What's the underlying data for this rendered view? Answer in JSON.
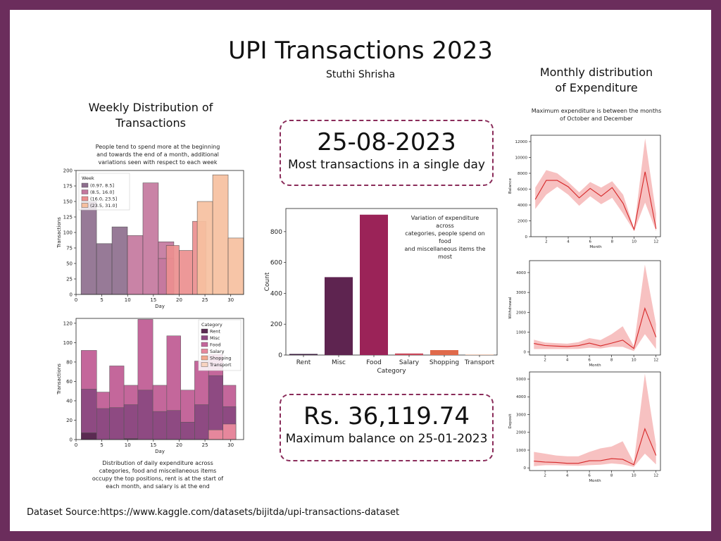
{
  "title": "UPI Transactions 2023",
  "author": "Stuthi Shrisha",
  "weekly": {
    "heading_line1": "Weekly Distribution of",
    "heading_line2": "Transactions",
    "note_lines": [
      "People tend to spend more at the beginning",
      "and towards the end of a month, additional",
      "variations seen with respect to each week"
    ],
    "bottom_note_lines": [
      "Distribution of daily expenditure across",
      "categories, food and miscellaneous items",
      "occupy the top positions, rent is at the start of",
      "each month, and salary is at the end"
    ]
  },
  "monthly": {
    "heading_line1": "Monthly distribution",
    "heading_line2": "of Expenditure",
    "note_lines": [
      "Maximum expenditure is between the months",
      "of October and December"
    ]
  },
  "kpi1": {
    "value": "25-08-2023",
    "label": "Most transactions in a single day"
  },
  "kpi2": {
    "value": "Rs. 36,119.74",
    "label": "Maximum balance on 25-01-2023"
  },
  "category_note_lines": [
    "Variation of expenditure across",
    "categories, people spend on food",
    "and miscellaneous items the",
    "most"
  ],
  "source": "Dataset Source:https://www.kaggle.com/datasets/bijitda/upi-transactions-dataset",
  "colors": {
    "frame": "#6b2d5c",
    "kpi_border": "#8a2c5a",
    "line": "#d62728",
    "band": "#f4a6a6"
  },
  "chart_data": [
    {
      "id": "weekly-hist",
      "type": "bar",
      "xlabel": "Day",
      "ylabel": "Transactions",
      "xlim": [
        0,
        32.5
      ],
      "ylim": [
        0,
        200
      ],
      "xticks": [
        0,
        5,
        10,
        15,
        20,
        25,
        30
      ],
      "yticks": [
        0,
        25,
        50,
        75,
        100,
        125,
        150,
        175,
        200
      ],
      "legend_title": "Week",
      "legend_position": "top-left",
      "series": [
        {
          "name": "(0.97, 8.5]",
          "color": "#8e6f8e",
          "bins": [
            [
              0.97,
              3.97,
              150
            ],
            [
              3.97,
              6.97,
              82
            ],
            [
              6.97,
              9.97,
              109
            ]
          ]
        },
        {
          "name": "(8.5, 16.0]",
          "color": "#c4789e",
          "bins": [
            [
              9.97,
              12.97,
              95
            ],
            [
              12.97,
              15.97,
              180
            ],
            [
              15.97,
              18.97,
              85
            ],
            [
              15.97,
              18.97,
              58
            ]
          ]
        },
        {
          "name": "(16.0, 23.5]",
          "color": "#ec8f8f",
          "bins": [
            [
              17.5,
              20.0,
              79
            ],
            [
              20.0,
              22.6,
              71
            ],
            [
              22.6,
              25.2,
              118
            ]
          ]
        },
        {
          "name": "(23.5, 31.0]",
          "color": "#f6c0a0",
          "bins": [
            [
              23.5,
              26.5,
              150
            ],
            [
              26.5,
              29.5,
              193
            ],
            [
              29.5,
              32.5,
              91
            ]
          ]
        }
      ]
    },
    {
      "id": "category-hist",
      "type": "bar",
      "xlabel": "Day",
      "ylabel": "Transactions",
      "xlim": [
        0,
        32.5
      ],
      "ylim": [
        0,
        125
      ],
      "xticks": [
        0,
        5,
        10,
        15,
        20,
        25,
        30
      ],
      "yticks": [
        0,
        20,
        40,
        60,
        80,
        100,
        120
      ],
      "legend_title": "Category",
      "legend_position": "top-right",
      "legend": [
        {
          "name": "Rent",
          "color": "#5b2a52"
        },
        {
          "name": "Misc",
          "color": "#8e4a82"
        },
        {
          "name": "Food",
          "color": "#c4679b"
        },
        {
          "name": "Salary",
          "color": "#e6879c"
        },
        {
          "name": "Shopping",
          "color": "#f2a88e"
        },
        {
          "name": "Transport",
          "color": "#f8d3c0"
        }
      ],
      "bin_edges": [
        1,
        4,
        6.5,
        9.3,
        12,
        14.9,
        17.6,
        20.3,
        23,
        25.7,
        28.5,
        31
      ],
      "food_totals": [
        92,
        49,
        76,
        56,
        124,
        56,
        107,
        51,
        81,
        88,
        56
      ],
      "misc": [
        52,
        32,
        33,
        36,
        51,
        29,
        30,
        18,
        36,
        66,
        34
      ],
      "rent": [
        7,
        0,
        0,
        1,
        0,
        0,
        0,
        0,
        0,
        0,
        0
      ],
      "salary": [
        0,
        0,
        0,
        0,
        0,
        0,
        0,
        0,
        0,
        10,
        16
      ]
    },
    {
      "id": "category-count",
      "type": "bar",
      "xlabel": "Category",
      "ylabel": "Count",
      "categories": [
        "Rent",
        "Misc",
        "Food",
        "Salary",
        "Shopping",
        "Transport"
      ],
      "values": [
        7,
        505,
        910,
        10,
        32,
        2
      ],
      "colors": [
        "#3b1e3e",
        "#5e2450",
        "#9b2358",
        "#c9475a",
        "#e06a4b",
        "#f0a070"
      ],
      "ylim": [
        0,
        950
      ],
      "yticks": [
        0,
        200,
        400,
        600,
        800
      ]
    },
    {
      "id": "balance-line",
      "type": "line",
      "xlabel": "Month",
      "ylabel": "Balance",
      "x": [
        1,
        2,
        3,
        4,
        5,
        6,
        7,
        8,
        9,
        10,
        11,
        12
      ],
      "y": [
        4700,
        7100,
        7100,
        6300,
        4900,
        6100,
        5100,
        6200,
        4200,
        900,
        8200,
        1000
      ],
      "band_lo": [
        3500,
        5300,
        6300,
        5300,
        3900,
        5100,
        4100,
        4900,
        2900,
        700,
        4300,
        700
      ],
      "band_hi": [
        6200,
        8400,
        8000,
        6900,
        5600,
        6900,
        6200,
        7000,
        5300,
        1000,
        12400,
        2900
      ],
      "xticks": [
        2,
        4,
        6,
        8,
        10,
        12
      ],
      "yticks": [
        0,
        2000,
        4000,
        6000,
        8000,
        10000,
        12000
      ],
      "xlim": [
        0.6,
        12.4
      ],
      "ylim": [
        0,
        12800
      ]
    },
    {
      "id": "withdrawal-line",
      "type": "line",
      "xlabel": "Month",
      "ylabel": "Withdrawal",
      "x": [
        1,
        2,
        3,
        4,
        5,
        6,
        7,
        8,
        9,
        10,
        11,
        12
      ],
      "y": [
        430,
        330,
        300,
        280,
        320,
        450,
        310,
        450,
        600,
        180,
        2200,
        750
      ],
      "band_lo": [
        150,
        150,
        150,
        150,
        160,
        220,
        180,
        260,
        260,
        50,
        900,
        150
      ],
      "band_hi": [
        620,
        480,
        450,
        420,
        500,
        700,
        600,
        900,
        1300,
        300,
        4400,
        1400
      ],
      "xticks": [
        2,
        4,
        6,
        8,
        10,
        12
      ],
      "yticks": [
        0,
        1000,
        2000,
        3000,
        4000
      ],
      "xlim": [
        0.6,
        12.4
      ],
      "ylim": [
        -150,
        4600
      ]
    },
    {
      "id": "deposit-line",
      "type": "line",
      "xlabel": "Month",
      "ylabel": "Deposit",
      "x": [
        1,
        2,
        3,
        4,
        5,
        6,
        7,
        8,
        9,
        10,
        11,
        12
      ],
      "y": [
        380,
        330,
        310,
        260,
        260,
        400,
        410,
        520,
        480,
        180,
        2200,
        700
      ],
      "band_lo": [
        100,
        150,
        150,
        130,
        120,
        150,
        180,
        250,
        200,
        60,
        800,
        200
      ],
      "band_hi": [
        900,
        800,
        700,
        650,
        650,
        900,
        1100,
        1200,
        1500,
        300,
        5300,
        1300
      ],
      "xticks": [
        2,
        4,
        6,
        8,
        10,
        12
      ],
      "yticks": [
        0,
        1000,
        2000,
        3000,
        4000,
        5000
      ],
      "xlim": [
        0.6,
        12.4
      ],
      "ylim": [
        -150,
        5400
      ]
    }
  ]
}
